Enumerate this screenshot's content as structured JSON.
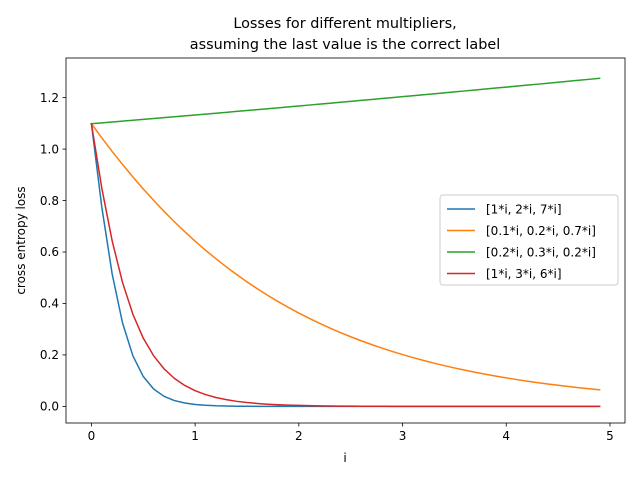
{
  "chart_data": {
    "type": "line",
    "title_lines": [
      "Losses for different multipliers,",
      "assuming the last value is the correct label"
    ],
    "xlabel": "i",
    "ylabel": "cross entropy loss",
    "xlim": [
      -0.245,
      5.145
    ],
    "ylim": [
      -0.0645,
      1.354
    ],
    "xticks": [
      0,
      1,
      2,
      3,
      4,
      5
    ],
    "yticks": [
      0.0,
      0.2,
      0.4,
      0.6,
      0.8,
      1.0,
      1.2
    ],
    "xtick_labels": [
      "0",
      "1",
      "2",
      "3",
      "4",
      "5"
    ],
    "ytick_labels": [
      "0.0",
      "0.2",
      "0.4",
      "0.6",
      "0.8",
      "1.0",
      "1.2"
    ],
    "grid": false,
    "legend_position": "center-right",
    "x": [
      0.0,
      0.1,
      0.2,
      0.3,
      0.4,
      0.5,
      0.6,
      0.7,
      0.8,
      0.9,
      1.0,
      1.1,
      1.2,
      1.3,
      1.4,
      1.5,
      1.6,
      1.7,
      1.8,
      1.9,
      2.0,
      2.1,
      2.2,
      2.3,
      2.4,
      2.5,
      2.6,
      2.7,
      2.8,
      2.9,
      3.0,
      3.1,
      3.2,
      3.3,
      3.4,
      3.5,
      3.6,
      3.7,
      3.8,
      3.9,
      4.0,
      4.1,
      4.2,
      4.3,
      4.4,
      4.5,
      4.6,
      4.7,
      4.8,
      4.9
    ],
    "series": [
      {
        "name": "[1*i, 2*i, 7*i]",
        "color": "#1f77b4",
        "values": [
          1.0986,
          0.7751,
          0.5151,
          0.3247,
          0.1967,
          0.1161,
          0.0677,
          0.0392,
          0.0227,
          0.0131,
          0.0076,
          0.0044,
          0.0025,
          0.0015,
          0.0008,
          0.0005,
          0.0003,
          0.0002,
          0.0001,
          0.0001,
          0.0,
          0.0,
          0.0,
          0.0,
          0.0,
          0.0,
          0.0,
          0.0,
          0.0,
          0.0,
          0.0,
          0.0,
          0.0,
          0.0,
          0.0,
          0.0,
          0.0,
          0.0,
          0.0,
          0.0,
          0.0,
          0.0,
          0.0,
          0.0,
          0.0,
          0.0,
          0.0,
          0.0,
          0.0,
          0.0
        ]
      },
      {
        "name": "[0.1*i, 0.2*i, 0.7*i]",
        "color": "#ff7f0e",
        "values": [
          1.0986,
          1.0438,
          0.991,
          0.9403,
          0.8917,
          0.8451,
          0.8006,
          0.7581,
          0.7176,
          0.679,
          0.6422,
          0.6072,
          0.574,
          0.5424,
          0.5125,
          0.4841,
          0.4571,
          0.4316,
          0.4074,
          0.3845,
          0.3628,
          0.3423,
          0.3229,
          0.3045,
          0.2871,
          0.2707,
          0.2552,
          0.2406,
          0.2268,
          0.2137,
          0.2014,
          0.1898,
          0.1788,
          0.1685,
          0.1587,
          0.1495,
          0.1408,
          0.1326,
          0.1249,
          0.1176,
          0.1108,
          0.1043,
          0.0982,
          0.0925,
          0.0871,
          0.082,
          0.0772,
          0.0727,
          0.0684,
          0.0644
        ]
      },
      {
        "name": "[0.2*i, 0.3*i, 0.2*i]",
        "color": "#2ca02c",
        "values": [
          1.0986,
          1.102,
          1.1053,
          1.1087,
          1.112,
          1.1154,
          1.1188,
          1.1222,
          1.1256,
          1.129,
          1.1325,
          1.1359,
          1.1394,
          1.1429,
          1.1464,
          1.1499,
          1.1534,
          1.1569,
          1.1604,
          1.164,
          1.1676,
          1.1711,
          1.1747,
          1.1783,
          1.1819,
          1.1855,
          1.1892,
          1.1928,
          1.1964,
          1.2001,
          1.2038,
          1.2075,
          1.2111,
          1.2148,
          1.2185,
          1.2223,
          1.226,
          1.2297,
          1.2334,
          1.2372,
          1.2409,
          1.2447,
          1.2485,
          1.2522,
          1.256,
          1.2598,
          1.2636,
          1.2674,
          1.2712,
          1.275
        ]
      },
      {
        "name": "[1*i, 3*i, 6*i]",
        "color": "#d62728",
        "values": [
          1.0986,
          0.8486,
          0.6435,
          0.4818,
          0.358,
          0.2653,
          0.1967,
          0.1462,
          0.1089,
          0.0814,
          0.0611,
          0.046,
          0.0347,
          0.0262,
          0.0198,
          0.015,
          0.0114,
          0.0086,
          0.0066,
          0.005,
          0.0038,
          0.0029,
          0.0022,
          0.0017,
          0.0013,
          0.001,
          0.0007,
          0.0006,
          0.0004,
          0.0003,
          0.0002,
          0.0002,
          0.0001,
          0.0001,
          0.0001,
          0.0001,
          0.0,
          0.0,
          0.0,
          0.0,
          0.0,
          0.0,
          0.0,
          0.0,
          0.0,
          0.0,
          0.0,
          0.0,
          0.0,
          0.0
        ]
      }
    ]
  }
}
